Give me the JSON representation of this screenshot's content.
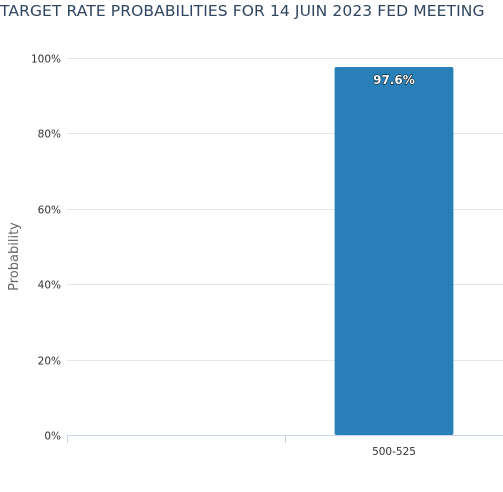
{
  "chart_data": {
    "type": "bar",
    "title": "TARGET RATE PROBABILITIES FOR 14 JUIN 2023 FED MEETING",
    "xlabel": "",
    "ylabel": "Probability",
    "categories": [
      "",
      "500-525"
    ],
    "values": [
      null,
      97.6
    ],
    "data_labels": [
      "",
      "97.6%"
    ],
    "ylim": [
      0,
      100
    ],
    "yticks": [
      0,
      20,
      40,
      60,
      80,
      100
    ],
    "ytick_labels": [
      "0%",
      "20%",
      "40%",
      "60%",
      "80%",
      "100%"
    ],
    "grid": true,
    "legend": "none",
    "bar_color": "#2980b9",
    "grid_color": "#e6e6e6",
    "axis_color": "#ccd6eb",
    "title_color": "#2f4560"
  }
}
